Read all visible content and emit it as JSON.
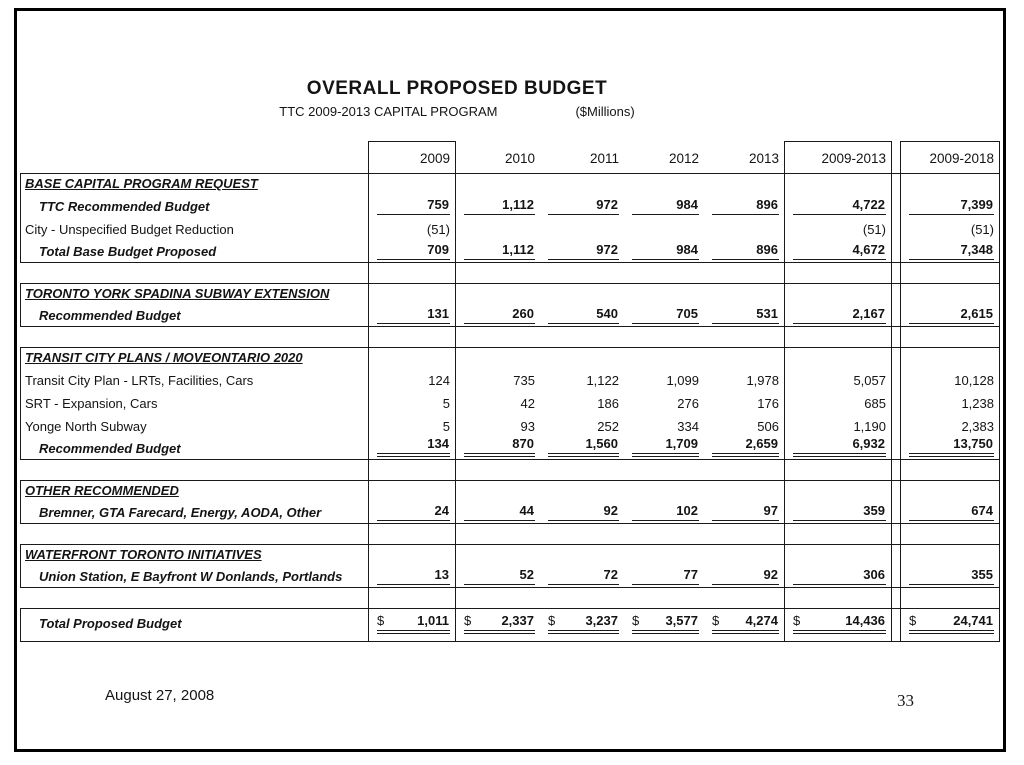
{
  "page": {
    "title": "OVERALL PROPOSED BUDGET",
    "subtitle": "TTC 2009-2013 CAPITAL PROGRAM",
    "units": "($Millions)",
    "footer_date": "August 27, 2008",
    "page_number": "33"
  },
  "colors": {
    "ink": "#141414",
    "border": "#000000",
    "background": "#ffffff"
  },
  "table": {
    "currency_symbol": "$",
    "column_headers": [
      "2009",
      "2010",
      "2011",
      "2012",
      "2013",
      "2009-2013",
      "2009-2018"
    ],
    "rows": [
      {
        "type": "section",
        "label": "BASE CAPITAL PROGRAM REQUEST"
      },
      {
        "type": "data",
        "style": "emphasis",
        "indent": true,
        "underline": "single",
        "label": "TTC Recommended Budget",
        "values": [
          "759",
          "1,112",
          "972",
          "984",
          "896",
          "4,722",
          "7,399"
        ]
      },
      {
        "type": "data",
        "style": "plain",
        "indent": false,
        "underline": "none",
        "label": "City - Unspecified Budget Reduction",
        "values": [
          "(51)",
          "",
          "",
          "",
          "",
          "(51)",
          "(51)"
        ]
      },
      {
        "type": "data",
        "style": "emphasis",
        "indent": true,
        "underline": "single",
        "section_end": true,
        "label": "Total Base Budget Proposed",
        "values": [
          "709",
          "1,112",
          "972",
          "984",
          "896",
          "4,672",
          "7,348"
        ]
      },
      {
        "type": "spacer"
      },
      {
        "type": "section",
        "label": "TORONTO YORK SPADINA SUBWAY EXTENSION"
      },
      {
        "type": "data",
        "style": "emphasis",
        "indent": true,
        "underline": "single",
        "section_end": true,
        "label": "Recommended Budget",
        "values": [
          "131",
          "260",
          "540",
          "705",
          "531",
          "2,167",
          "2,615"
        ]
      },
      {
        "type": "spacer"
      },
      {
        "type": "section",
        "label": "TRANSIT CITY PLANS / MOVEONTARIO 2020"
      },
      {
        "type": "data",
        "style": "plain",
        "indent": false,
        "underline": "none",
        "label": "Transit City Plan - LRTs, Facilities, Cars",
        "values": [
          "124",
          "735",
          "1,122",
          "1,099",
          "1,978",
          "5,057",
          "10,128"
        ]
      },
      {
        "type": "data",
        "style": "plain",
        "indent": false,
        "underline": "none",
        "label": "SRT - Expansion, Cars",
        "values": [
          "5",
          "42",
          "186",
          "276",
          "176",
          "685",
          "1,238"
        ]
      },
      {
        "type": "data",
        "style": "plain",
        "indent": false,
        "underline": "none",
        "label": "Yonge North Subway",
        "values": [
          "5",
          "93",
          "252",
          "334",
          "506",
          "1,190",
          "2,383"
        ]
      },
      {
        "type": "data",
        "style": "emphasis",
        "indent": true,
        "underline": "double",
        "section_end": true,
        "label": "Recommended Budget",
        "values": [
          "134",
          "870",
          "1,560",
          "1,709",
          "2,659",
          "6,932",
          "13,750"
        ]
      },
      {
        "type": "spacer"
      },
      {
        "type": "section",
        "label": "OTHER RECOMMENDED"
      },
      {
        "type": "data",
        "style": "emphasis",
        "indent": true,
        "underline": "single",
        "section_end": true,
        "label": "Bremner, GTA Farecard, Energy, AODA, Other",
        "values": [
          "24",
          "44",
          "92",
          "102",
          "97",
          "359",
          "674"
        ]
      },
      {
        "type": "spacer"
      },
      {
        "type": "section",
        "label": "WATERFRONT TORONTO INITIATIVES"
      },
      {
        "type": "data",
        "style": "emphasis",
        "indent": true,
        "underline": "single",
        "section_end": true,
        "label": "Union Station, E Bayfront W Donlands, Portlands",
        "values": [
          "13",
          "52",
          "72",
          "77",
          "92",
          "306",
          "355"
        ]
      },
      {
        "type": "spacer"
      },
      {
        "type": "data",
        "style": "emphasis",
        "indent": true,
        "underline": "double",
        "dollar": true,
        "section_start": true,
        "section_end": true,
        "tall": true,
        "label": "Total Proposed Budget",
        "values": [
          "1,011",
          "2,337",
          "3,237",
          "3,577",
          "4,274",
          "14,436",
          "24,741"
        ]
      }
    ]
  }
}
